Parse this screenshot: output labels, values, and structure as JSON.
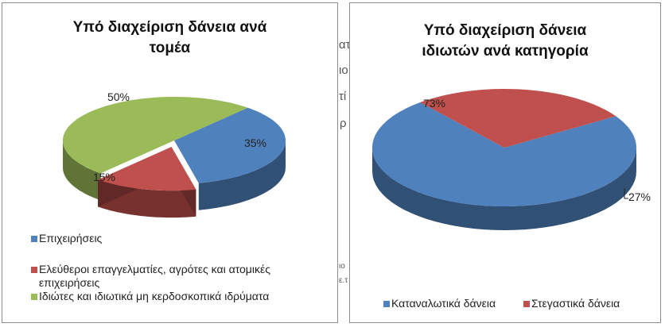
{
  "chart_data": [
    {
      "type": "pie",
      "title": [
        "Υπό διαχείριση δάνεια ανά",
        "τομέα"
      ],
      "categories": [
        "Επιχειρήσεις",
        "Ελεύθεροι επαγγελματίες, αγρότες και ατομικές επιχειρήσεις",
        "Ιδιώτες και ιδιωτικά μη κερδοσκοπικά ιδρύματα"
      ],
      "legend_lines": [
        "Επιχειρήσεις",
        "Ελεύθεροι επαγγελματίες, αγρότες και ατομικές",
        "επιχειρήσεις",
        "Ιδιώτες και ιδιωτικά μη κερδοσκοπικά ιδρύματα"
      ],
      "values": [
        35,
        15,
        50
      ],
      "data_labels": [
        "35%",
        "15%",
        "50%"
      ],
      "colors": [
        "#4f81bd",
        "#c0504d",
        "#9bbb59"
      ],
      "legend": "bottom",
      "exploded": "Ελεύθεροι επαγγελματίες, αγρότες και ατομικές επιχειρήσεις"
    },
    {
      "type": "pie",
      "title": [
        "Υπό διαχείριση δάνεια",
        "ιδιωτών ανά κατηγορία"
      ],
      "categories": [
        "Καταναλωτικά δάνεια",
        "Στεγαστικά δάνεια"
      ],
      "values": [
        73,
        27
      ],
      "data_labels": [
        "73%",
        "27%"
      ],
      "colors": [
        "#4f81bd",
        "#c0504d"
      ],
      "legend": "bottom"
    }
  ],
  "background_text": [
    "ατ",
    "ιο",
    "τί",
    "ρ",
    "ιο",
    "ε.τ"
  ]
}
